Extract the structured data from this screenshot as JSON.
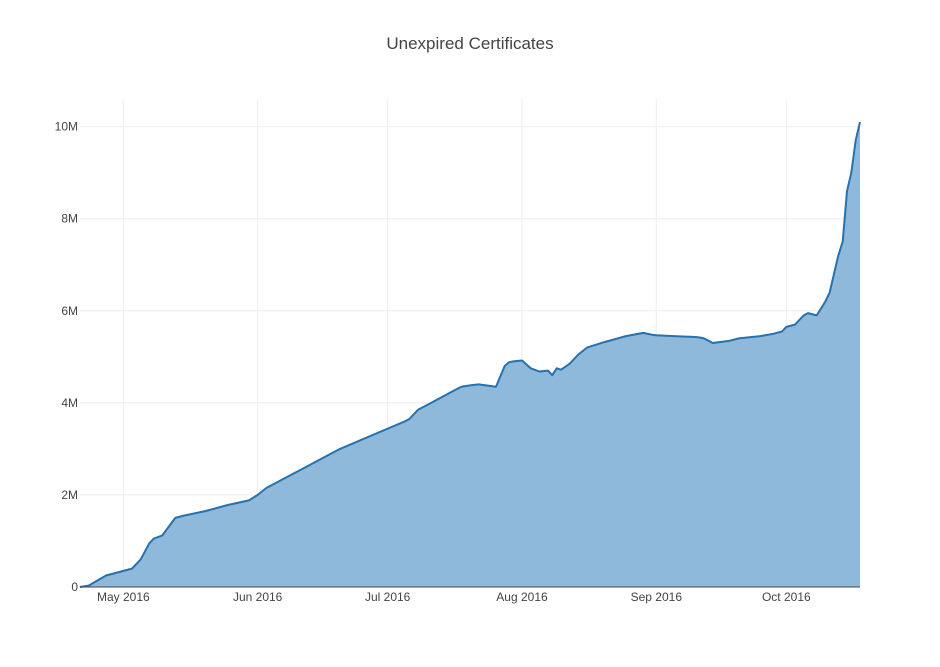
{
  "chart_data": {
    "type": "area",
    "title": "Unexpired Certificates",
    "xlabel": "",
    "ylabel": "",
    "xlim": [
      "2016-04-21",
      "2016-10-18"
    ],
    "ylim": [
      0,
      10600000
    ],
    "grid": true,
    "legend": "none",
    "colors": {
      "fill": "#8fb9da",
      "line": "#2771ad",
      "axis": "#444444"
    },
    "x_ticks": [
      {
        "date": "2016-05-01",
        "label": "May 2016"
      },
      {
        "date": "2016-06-01",
        "label": "Jun 2016"
      },
      {
        "date": "2016-07-01",
        "label": "Jul 2016"
      },
      {
        "date": "2016-08-01",
        "label": "Aug 2016"
      },
      {
        "date": "2016-09-01",
        "label": "Sep 2016"
      },
      {
        "date": "2016-10-01",
        "label": "Oct 2016"
      }
    ],
    "y_ticks": [
      {
        "value": 0,
        "label": "0"
      },
      {
        "value": 2000000,
        "label": "2M"
      },
      {
        "value": 4000000,
        "label": "4M"
      },
      {
        "value": 6000000,
        "label": "6M"
      },
      {
        "value": 8000000,
        "label": "8M"
      },
      {
        "value": 10000000,
        "label": "10M"
      }
    ],
    "series": [
      {
        "x": [
          "2016-04-21",
          "2016-04-23",
          "2016-04-27",
          "2016-05-03",
          "2016-05-05",
          "2016-05-07",
          "2016-05-08",
          "2016-05-10",
          "2016-05-13",
          "2016-05-15",
          "2016-05-20",
          "2016-05-25",
          "2016-05-30",
          "2016-06-01",
          "2016-06-03",
          "2016-06-05",
          "2016-06-10",
          "2016-06-13",
          "2016-06-15",
          "2016-06-20",
          "2016-06-25",
          "2016-06-30",
          "2016-07-05",
          "2016-07-06",
          "2016-07-08",
          "2016-07-10",
          "2016-07-13",
          "2016-07-16",
          "2016-07-18",
          "2016-07-20",
          "2016-07-22",
          "2016-07-26",
          "2016-07-28",
          "2016-07-29",
          "2016-07-30",
          "2016-08-01",
          "2016-08-03",
          "2016-08-05",
          "2016-08-07",
          "2016-08-08",
          "2016-08-09",
          "2016-08-10",
          "2016-08-12",
          "2016-08-14",
          "2016-08-16",
          "2016-08-20",
          "2016-08-25",
          "2016-08-29",
          "2016-08-31",
          "2016-09-01",
          "2016-09-05",
          "2016-09-10",
          "2016-09-11",
          "2016-09-12",
          "2016-09-14",
          "2016-09-18",
          "2016-09-20",
          "2016-09-25",
          "2016-09-28",
          "2016-09-30",
          "2016-10-01",
          "2016-10-03",
          "2016-10-04",
          "2016-10-05",
          "2016-10-06",
          "2016-10-08",
          "2016-10-09",
          "2016-10-10",
          "2016-10-11",
          "2016-10-12",
          "2016-10-13",
          "2016-10-14",
          "2016-10-15",
          "2016-10-16",
          "2016-10-17",
          "2016-10-18"
        ],
        "values": [
          0,
          30000,
          250000,
          400000,
          600000,
          950000,
          1050000,
          1120000,
          1500000,
          1550000,
          1650000,
          1780000,
          1880000,
          2000000,
          2150000,
          2250000,
          2500000,
          2650000,
          2750000,
          3000000,
          3200000,
          3400000,
          3600000,
          3650000,
          3850000,
          3950000,
          4100000,
          4250000,
          4350000,
          4380000,
          4400000,
          4350000,
          4800000,
          4880000,
          4900000,
          4920000,
          4750000,
          4680000,
          4700000,
          4600000,
          4750000,
          4720000,
          4850000,
          5050000,
          5200000,
          5320000,
          5450000,
          5520000,
          5480000,
          5470000,
          5450000,
          5430000,
          5420000,
          5400000,
          5300000,
          5350000,
          5400000,
          5450000,
          5500000,
          5550000,
          5650000,
          5700000,
          5800000,
          5900000,
          5950000,
          5900000,
          6050000,
          6200000,
          6400000,
          6800000,
          7200000,
          7500000,
          8600000,
          9000000,
          9700000,
          10100000
        ]
      }
    ]
  }
}
